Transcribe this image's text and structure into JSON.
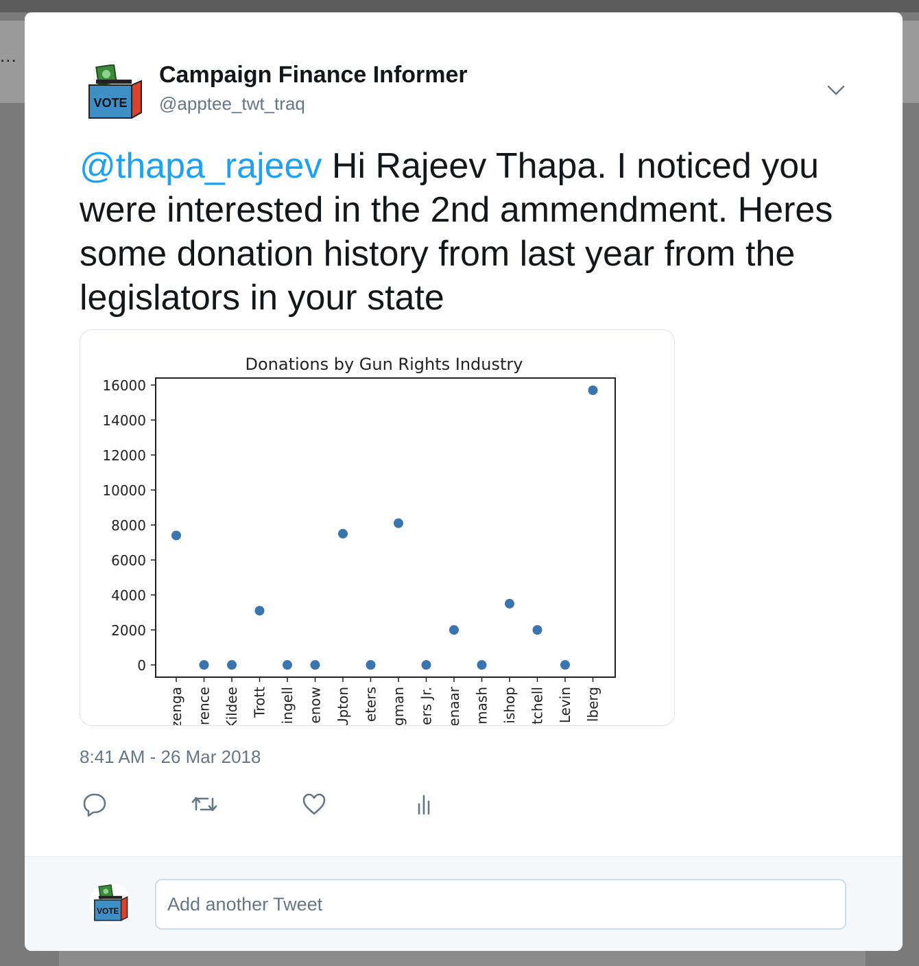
{
  "tweet": {
    "author_name": "Campaign Finance Informer",
    "author_handle": "@apptee_twt_traq",
    "mention": "@thapa_rajeev",
    "body": " Hi Rajeev Thapa. I noticed you were interested in the 2nd ammendment. Heres some donation history from last year from the legislators in your state",
    "timestamp": "8:41 AM - 26 Mar 2018",
    "avatar_label": "VOTE"
  },
  "actions": [
    "reply-icon",
    "retweet-icon",
    "like-icon",
    "analytics-icon"
  ],
  "reply": {
    "placeholder": "Add another Tweet"
  },
  "background": {
    "truncated_text": "..."
  },
  "colors": {
    "accent": "#1da1f2",
    "point": "#3a75af",
    "text": "#14171a",
    "muted": "#657786"
  },
  "chart_data": {
    "type": "scatter",
    "title": "Donations by Gun Rights Industry",
    "xlabel": "",
    "ylabel": "",
    "ylim": [
      -700,
      16400
    ],
    "yticks": [
      0,
      2000,
      4000,
      6000,
      8000,
      10000,
      12000,
      14000,
      16000
    ],
    "categories": [
      "zenga",
      "rence",
      "Kildee",
      "Trott",
      "ingell",
      "enow",
      "Upton",
      "eters",
      "gman",
      "ers Jr.",
      "enaar",
      "mash",
      "ishop",
      "tchell",
      "Levin",
      "lberg"
    ],
    "values": [
      7400,
      0,
      0,
      3100,
      0,
      0,
      7500,
      0,
      8100,
      0,
      2000,
      0,
      3500,
      2000,
      0,
      15700
    ],
    "grid": false,
    "legend": "none"
  }
}
